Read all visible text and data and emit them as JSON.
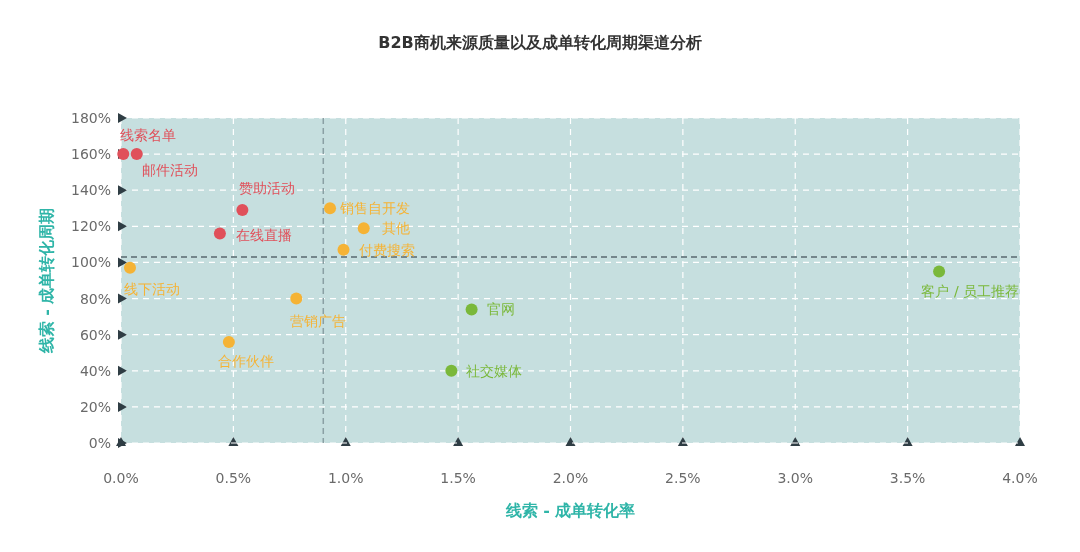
{
  "chart_data": {
    "type": "scatter",
    "title": "B2B商机来源质量以及成单转化周期渠道分析",
    "xlabel": "线索 - 成单转化率",
    "ylabel": "线索 - 成单转化周期",
    "xlim": [
      0,
      4
    ],
    "ylim": [
      0,
      180
    ],
    "xticks": [
      {
        "value": 0,
        "label": "0.0%"
      },
      {
        "value": 0.5,
        "label": "0.5%"
      },
      {
        "value": 1,
        "label": "1.0%"
      },
      {
        "value": 1.5,
        "label": "1.5%"
      },
      {
        "value": 2,
        "label": "2.0%"
      },
      {
        "value": 2.5,
        "label": "2.5%"
      },
      {
        "value": 3,
        "label": "3.0%"
      },
      {
        "value": 3.5,
        "label": "3.5%"
      },
      {
        "value": 4,
        "label": "4.0%"
      }
    ],
    "yticks": [
      {
        "value": 0,
        "label": "0%"
      },
      {
        "value": 20,
        "label": "20%"
      },
      {
        "value": 40,
        "label": "40%"
      },
      {
        "value": 60,
        "label": "60%"
      },
      {
        "value": 80,
        "label": "80%"
      },
      {
        "value": 100,
        "label": "100%"
      },
      {
        "value": 120,
        "label": "120%"
      },
      {
        "value": 140,
        "label": "140%"
      },
      {
        "value": 160,
        "label": "160%"
      },
      {
        "value": 180,
        "label": "180%"
      }
    ],
    "grid": true,
    "marker": "circle",
    "series": [
      {
        "color": "#e0505a",
        "x": [
          0.01,
          0.07,
          0.54,
          0.44
        ],
        "values": [
          160,
          160,
          129,
          116
        ]
      },
      {
        "color": "#f5b335",
        "x": [
          0.93,
          1.08,
          0.99,
          0.04,
          0.78,
          0.48
        ],
        "values": [
          130,
          119,
          107,
          97,
          80,
          56
        ]
      },
      {
        "color": "#7ab83a",
        "x": [
          1.56,
          1.47,
          3.64
        ],
        "values": [
          74,
          40,
          95
        ]
      }
    ],
    "ref_lines": [
      {
        "axis": "y",
        "value": 103,
        "color": "#5a6a70",
        "line_style": "dashed"
      },
      {
        "axis": "x",
        "value": 0.9,
        "color": "#8aa0a4",
        "line_style": "dashed"
      }
    ],
    "annotations": [
      {
        "text": "线索名单",
        "x": 0.01,
        "y": 160
      },
      {
        "text": "邮件活动",
        "x": 0.07,
        "y": 160
      },
      {
        "text": "赞助活动",
        "x": 0.54,
        "y": 129
      },
      {
        "text": "在线直播",
        "x": 0.44,
        "y": 116
      },
      {
        "text": "销售自开发",
        "x": 0.93,
        "y": 130
      },
      {
        "text": "其他",
        "x": 1.08,
        "y": 119
      },
      {
        "text": "付费搜索",
        "x": 0.99,
        "y": 107
      },
      {
        "text": "线下活动",
        "x": 0.04,
        "y": 97
      },
      {
        "text": "营销广告",
        "x": 0.78,
        "y": 80
      },
      {
        "text": "合作伙伴",
        "x": 0.48,
        "y": 56
      },
      {
        "text": "官网",
        "x": 1.56,
        "y": 74
      },
      {
        "text": "社交媒体",
        "x": 1.47,
        "y": 40
      },
      {
        "text": "客户 / 员工推荐",
        "x": 3.64,
        "y": 95
      }
    ]
  }
}
